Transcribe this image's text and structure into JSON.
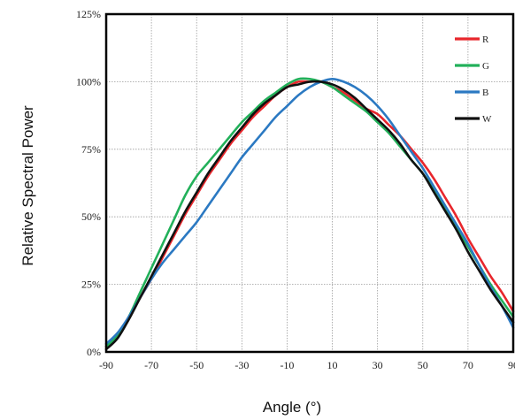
{
  "chart_data": {
    "type": "line",
    "xlabel": "Angle (°)",
    "ylabel": "Relative Spectral Power",
    "xlim": [
      -90,
      90
    ],
    "ylim": [
      0,
      125
    ],
    "x_ticks": [
      -90,
      -70,
      -50,
      -30,
      -10,
      10,
      30,
      50,
      70,
      90
    ],
    "x_tick_labels": [
      "-90",
      "-70",
      "-50",
      "-30",
      "-10",
      "10",
      "30",
      "50",
      "70",
      "90"
    ],
    "y_ticks": [
      0,
      25,
      50,
      75,
      100,
      125
    ],
    "y_tick_labels": [
      "0%",
      "25%",
      "50%",
      "75%",
      "100%",
      "125%"
    ],
    "grid": true,
    "legend_position": "top-right",
    "series": [
      {
        "name": "R",
        "color": "#e8262c",
        "x": [
          -90,
          -85,
          -80,
          -75,
          -70,
          -65,
          -60,
          -55,
          -50,
          -45,
          -40,
          -35,
          -30,
          -25,
          -20,
          -15,
          -10,
          -5,
          0,
          5,
          10,
          15,
          20,
          25,
          30,
          35,
          40,
          45,
          50,
          55,
          60,
          65,
          70,
          75,
          80,
          85,
          90
        ],
        "values": [
          2,
          6,
          13,
          20,
          27,
          35,
          43,
          51,
          58,
          65,
          71,
          77,
          82,
          87,
          91,
          95,
          98,
          100,
          100,
          100,
          98,
          96,
          93,
          90,
          88,
          84,
          80,
          75,
          70,
          64,
          57,
          50,
          42,
          35,
          28,
          22,
          15
        ]
      },
      {
        "name": "G",
        "color": "#22b05a",
        "x": [
          -90,
          -85,
          -80,
          -75,
          -70,
          -65,
          -60,
          -55,
          -50,
          -45,
          -40,
          -35,
          -30,
          -25,
          -20,
          -15,
          -10,
          -5,
          0,
          5,
          10,
          15,
          20,
          25,
          30,
          35,
          40,
          45,
          50,
          55,
          60,
          65,
          70,
          75,
          80,
          85,
          90
        ],
        "values": [
          2,
          6,
          13,
          22,
          31,
          40,
          49,
          58,
          65,
          70,
          75,
          80,
          85,
          89,
          93,
          96,
          99,
          101,
          101,
          100,
          98,
          95,
          92,
          89,
          85,
          81,
          76,
          71,
          66,
          60,
          53,
          46,
          39,
          32,
          25,
          19,
          13
        ]
      },
      {
        "name": "B",
        "color": "#2b79c2",
        "x": [
          -90,
          -85,
          -80,
          -75,
          -70,
          -65,
          -60,
          -55,
          -50,
          -45,
          -40,
          -35,
          -30,
          -25,
          -20,
          -15,
          -10,
          -5,
          0,
          5,
          10,
          15,
          20,
          25,
          30,
          35,
          40,
          45,
          50,
          55,
          60,
          65,
          70,
          75,
          80,
          85,
          90
        ],
        "values": [
          3,
          7,
          13,
          20,
          27,
          33,
          38,
          43,
          48,
          54,
          60,
          66,
          72,
          77,
          82,
          87,
          91,
          95,
          98,
          100,
          101,
          100,
          98,
          95,
          91,
          86,
          80,
          74,
          68,
          61,
          54,
          47,
          40,
          32,
          24,
          17,
          9
        ]
      },
      {
        "name": "W",
        "color": "#111111",
        "x": [
          -90,
          -85,
          -80,
          -75,
          -70,
          -65,
          -60,
          -55,
          -50,
          -45,
          -40,
          -35,
          -30,
          -25,
          -20,
          -15,
          -10,
          -5,
          0,
          5,
          10,
          15,
          20,
          25,
          30,
          35,
          40,
          45,
          50,
          55,
          60,
          65,
          70,
          75,
          80,
          85,
          90
        ],
        "values": [
          1,
          5,
          12,
          20,
          28,
          36,
          44,
          52,
          59,
          66,
          72,
          78,
          83,
          88,
          92,
          95,
          98,
          99,
          100,
          100,
          99,
          97,
          94,
          90,
          86,
          82,
          77,
          71,
          66,
          59,
          52,
          45,
          37,
          30,
          23,
          17,
          11
        ]
      }
    ]
  }
}
